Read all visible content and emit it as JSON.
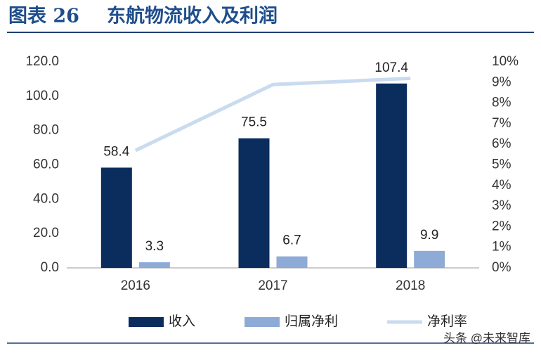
{
  "chart_data": {
    "type": "bar",
    "figure_label": "图表 26",
    "title": "东航物流收入及利润",
    "watermark": "头条 @未来智库",
    "categories": [
      "2016",
      "2017",
      "2018"
    ],
    "series": [
      {
        "name": "收入",
        "type": "bar",
        "color": "#0b2d5e",
        "values": [
          58.4,
          75.5,
          107.4
        ]
      },
      {
        "name": "归属净利",
        "type": "bar",
        "color": "#8eaad6",
        "values": [
          3.3,
          6.7,
          9.9
        ]
      },
      {
        "name": "净利率",
        "type": "line",
        "axis": "y2",
        "color": "#c9dbef",
        "values": [
          5.7,
          8.9,
          9.2
        ]
      }
    ],
    "ylim": [
      0,
      120
    ],
    "yticks": [
      {
        "value": 0,
        "label": "0.0"
      },
      {
        "value": 20,
        "label": "20.0"
      },
      {
        "value": 40,
        "label": "40.0"
      },
      {
        "value": 60,
        "label": "60.0"
      },
      {
        "value": 80,
        "label": "80.0"
      },
      {
        "value": 100,
        "label": "100.0"
      },
      {
        "value": 120,
        "label": "120.0"
      }
    ],
    "y2lim": [
      0,
      10
    ],
    "y2ticks": [
      {
        "value": 0,
        "label": "0%"
      },
      {
        "value": 1,
        "label": "1%"
      },
      {
        "value": 2,
        "label": "2%"
      },
      {
        "value": 3,
        "label": "3%"
      },
      {
        "value": 4,
        "label": "4%"
      },
      {
        "value": 5,
        "label": "5%"
      },
      {
        "value": 6,
        "label": "6%"
      },
      {
        "value": 7,
        "label": "7%"
      },
      {
        "value": 8,
        "label": "8%"
      },
      {
        "value": 9,
        "label": "9%"
      },
      {
        "value": 10,
        "label": "10%"
      }
    ],
    "legend": "bottom"
  }
}
